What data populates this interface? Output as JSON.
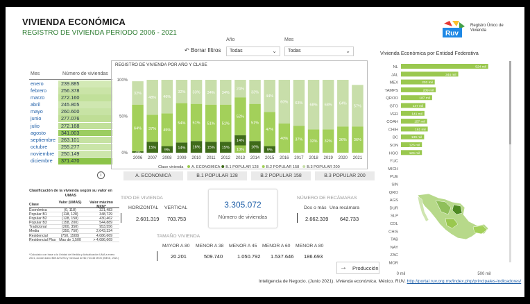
{
  "header": {
    "title": "VIVIENDA ECONÓMICA",
    "subtitle": "REGISTRO DE VIVIENDA PERIODO 2006 - 2021",
    "logo_text": "Ruv",
    "logo_caption": "Registro Único de Vivienda"
  },
  "filters": {
    "reset_label": "Borrar filtros",
    "year_label": "Año",
    "year_value": "Todas",
    "month_label": "Mes",
    "month_value": "Todas"
  },
  "months_table": {
    "col_month": "Mes",
    "col_count": "Número de viviendas",
    "rows": [
      {
        "month": "enero",
        "value": "239.885",
        "v": 239885
      },
      {
        "month": "febrero",
        "value": "256.378",
        "v": 256378
      },
      {
        "month": "marzo",
        "value": "272.160",
        "v": 272160
      },
      {
        "month": "abril",
        "value": "245.805",
        "v": 245805
      },
      {
        "month": "mayo",
        "value": "260.600",
        "v": 260600
      },
      {
        "month": "junio",
        "value": "277.076",
        "v": 277076
      },
      {
        "month": "julio",
        "value": "272.168",
        "v": 272168
      },
      {
        "month": "agosto",
        "value": "341.003",
        "v": 341003
      },
      {
        "month": "septiembre",
        "value": "263.101",
        "v": 263101
      },
      {
        "month": "octubre",
        "value": "255.277",
        "v": 255277
      },
      {
        "month": "noviembre",
        "value": "250.149",
        "v": 250149
      },
      {
        "month": "diciembre",
        "value": "371.470",
        "v": 371470
      }
    ]
  },
  "chart_data": [
    {
      "type": "bar",
      "stacked": "percent",
      "title": "REGISTRO DE VIVIENDA POR AÑO Y CLASE",
      "legend_title": "Clase vivienda",
      "ylim": [
        0,
        100
      ],
      "y_ticks": [
        "0%",
        "50%",
        "100%"
      ],
      "categories": [
        "2006",
        "2007",
        "2008",
        "2009",
        "2010",
        "2011",
        "2012",
        "2013",
        "2014",
        "2015",
        "2016",
        "2017",
        "2018",
        "2019",
        "2020",
        "2021"
      ],
      "series": [
        {
          "name": "A. ECONOMICA",
          "color": "#9ac84f",
          "values": [
            0,
            0,
            0,
            0,
            0,
            0,
            0,
            10,
            0,
            0,
            0,
            0,
            0,
            0,
            0,
            0
          ]
        },
        {
          "name": "B.1 POPULAR 128",
          "color": "#3f6b1a",
          "values": [
            2,
            15,
            9,
            14,
            16,
            15,
            15,
            14,
            16,
            9,
            0,
            0,
            0,
            0,
            0,
            0
          ]
        },
        {
          "name": "B.2 POPULAR 158",
          "color": "#a3d05a",
          "values": [
            64,
            37,
            45,
            54,
            51,
            51,
            51,
            52,
            51,
            47,
            40,
            37,
            32,
            32,
            36,
            36
          ]
        },
        {
          "name": "B.3 POPULAR 200",
          "color": "#c8deaa",
          "values": [
            32,
            48,
            46,
            32,
            33,
            34,
            34,
            24,
            33,
            44,
            60,
            63,
            68,
            68,
            64,
            57
          ]
        }
      ],
      "labels": [
        [
          "",
          "2%",
          "64%",
          "32%"
        ],
        [
          "",
          "15%",
          "37%",
          "48%"
        ],
        [
          "",
          "9%",
          "45%",
          "46%"
        ],
        [
          "",
          "14%",
          "54%",
          "32%"
        ],
        [
          "",
          "16%",
          "51%",
          "33%"
        ],
        [
          "",
          "15%",
          "51%",
          "34%"
        ],
        [
          "",
          "15%",
          "51%",
          "34%"
        ],
        [
          "10%",
          "14%",
          "52%",
          "24%"
        ],
        [
          "",
          "16%",
          "51%",
          "33%"
        ],
        [
          "",
          "9%",
          "47%",
          "44%"
        ],
        [
          "",
          "",
          "40%",
          "60%"
        ],
        [
          "",
          "",
          "37%",
          "63%"
        ],
        [
          "",
          "",
          "32%",
          "68%"
        ],
        [
          "",
          "",
          "32%",
          "68%"
        ],
        [
          "",
          "",
          "36%",
          "64%"
        ],
        [
          "",
          "",
          "36%",
          "57%"
        ]
      ]
    },
    {
      "type": "bar",
      "orientation": "horizontal",
      "title": "Vivienda Económica por Entidad Federativa",
      "xlim": [
        0,
        500
      ],
      "x_ticks": [
        "0 mil",
        "500 mil"
      ],
      "categories": [
        "NL",
        "JAL",
        "MEX",
        "TAMPS",
        "QROO",
        "GTO",
        "VER",
        "COAH",
        "CHIH",
        "BC",
        "SON",
        "HGO",
        "YUC",
        "MICH",
        "PUE",
        "SIN",
        "QRO",
        "AGS",
        "DUR",
        "SLP",
        "COL",
        "CHIS",
        "TAB",
        "NAY",
        "ZAC",
        "MOR"
      ],
      "values": [
        524,
        344,
        203,
        209,
        187,
        147,
        141,
        157,
        161,
        139,
        126,
        126,
        0,
        0,
        0,
        0,
        0,
        0,
        0,
        0,
        0,
        0,
        0,
        0,
        0,
        0
      ],
      "value_labels": [
        "524 mil",
        "344 mil",
        "203 mil",
        "209 mil",
        "187 mil",
        "147 mil",
        "141 mil",
        "157 mil",
        "161 mil",
        "139 mil",
        "126 mil",
        "126 mil",
        "",
        "",
        "",
        "",
        "",
        "",
        "",
        "",
        "",
        "",
        "",
        "",
        "",
        ""
      ]
    }
  ],
  "class_buttons": [
    "A. ECONOMICA",
    "B.1 POPULAR 128",
    "B.2 POPULAR 158",
    "B.3 POPULAR 200"
  ],
  "classification": {
    "title": "Clasificación de la vivienda según su valor en UMAS",
    "col_class": "Clase",
    "col_value": "Valor (UMAS)",
    "col_max": "Valor máximo MXN*",
    "rows": [
      {
        "cls": "Económica",
        "val": "(0, 118)",
        "max": "321,483"
      },
      {
        "cls": "Popular B1",
        "val": "(118, 128)",
        "max": "348,729"
      },
      {
        "cls": "Popular B2",
        "val": "(128, 158)",
        "max": "430,462"
      },
      {
        "cls": "Popular B3",
        "val": "(158, 200)",
        "max": "544,889"
      },
      {
        "cls": "Tradicional",
        "val": "(200, 350)",
        "max": "953,556"
      },
      {
        "cls": "Media",
        "val": "(350, 750)",
        "max": "2,043,334"
      },
      {
        "cls": "Residencial",
        "val": "(750, 1500)",
        "max": "4,086,669"
      },
      {
        "cls": "Residencial Plus",
        "val": "Mas de 1,500",
        "max": "> 4,086,669"
      }
    ],
    "note": "*Calculado con base a la Unidad de Medida y Actualización UMA a enero 2021, donde diario $89.62 MXN y mensual de $2,724.45 MXN (INEGI, 2021)"
  },
  "tipo_vivienda": {
    "header": "TIPO DE VIVIENDA",
    "col1": "HORIZONTAL",
    "col2": "VERTICAL",
    "val1": "2.601.319",
    "val2": "703.753"
  },
  "total": {
    "value": "3.305.072",
    "label": "Número de viviendas"
  },
  "recamaras": {
    "header": "NÚMERO DE RECÁMARAS",
    "col1": "Dos o más",
    "col2": "Una recámara",
    "val1": "2.662.339",
    "val2": "642.733"
  },
  "tamano": {
    "header": "TAMAÑO VIVIENDA",
    "cols": [
      "MAYOR A 80",
      "MENOR A 38",
      "MENOR A 45",
      "MENOR A 60",
      "MENOR A 80"
    ],
    "vals": [
      "20.201",
      "509.740",
      "1.050.792",
      "1.537.646",
      "186.693"
    ]
  },
  "production_button": "Producción",
  "footer": {
    "text": "Inteligencia de Negocio. (Junio 2021).",
    "italic": "Vivienda económica.",
    "country": "México. RUV.",
    "link": "http://portal.ruv.org.mx/index.php/principales-indicadores/"
  },
  "colors": {
    "accent_green": "#9ac84f",
    "dark_green": "#3f6b1a",
    "light_green": "#c8deaa",
    "blue_text": "#1f5fa8"
  }
}
